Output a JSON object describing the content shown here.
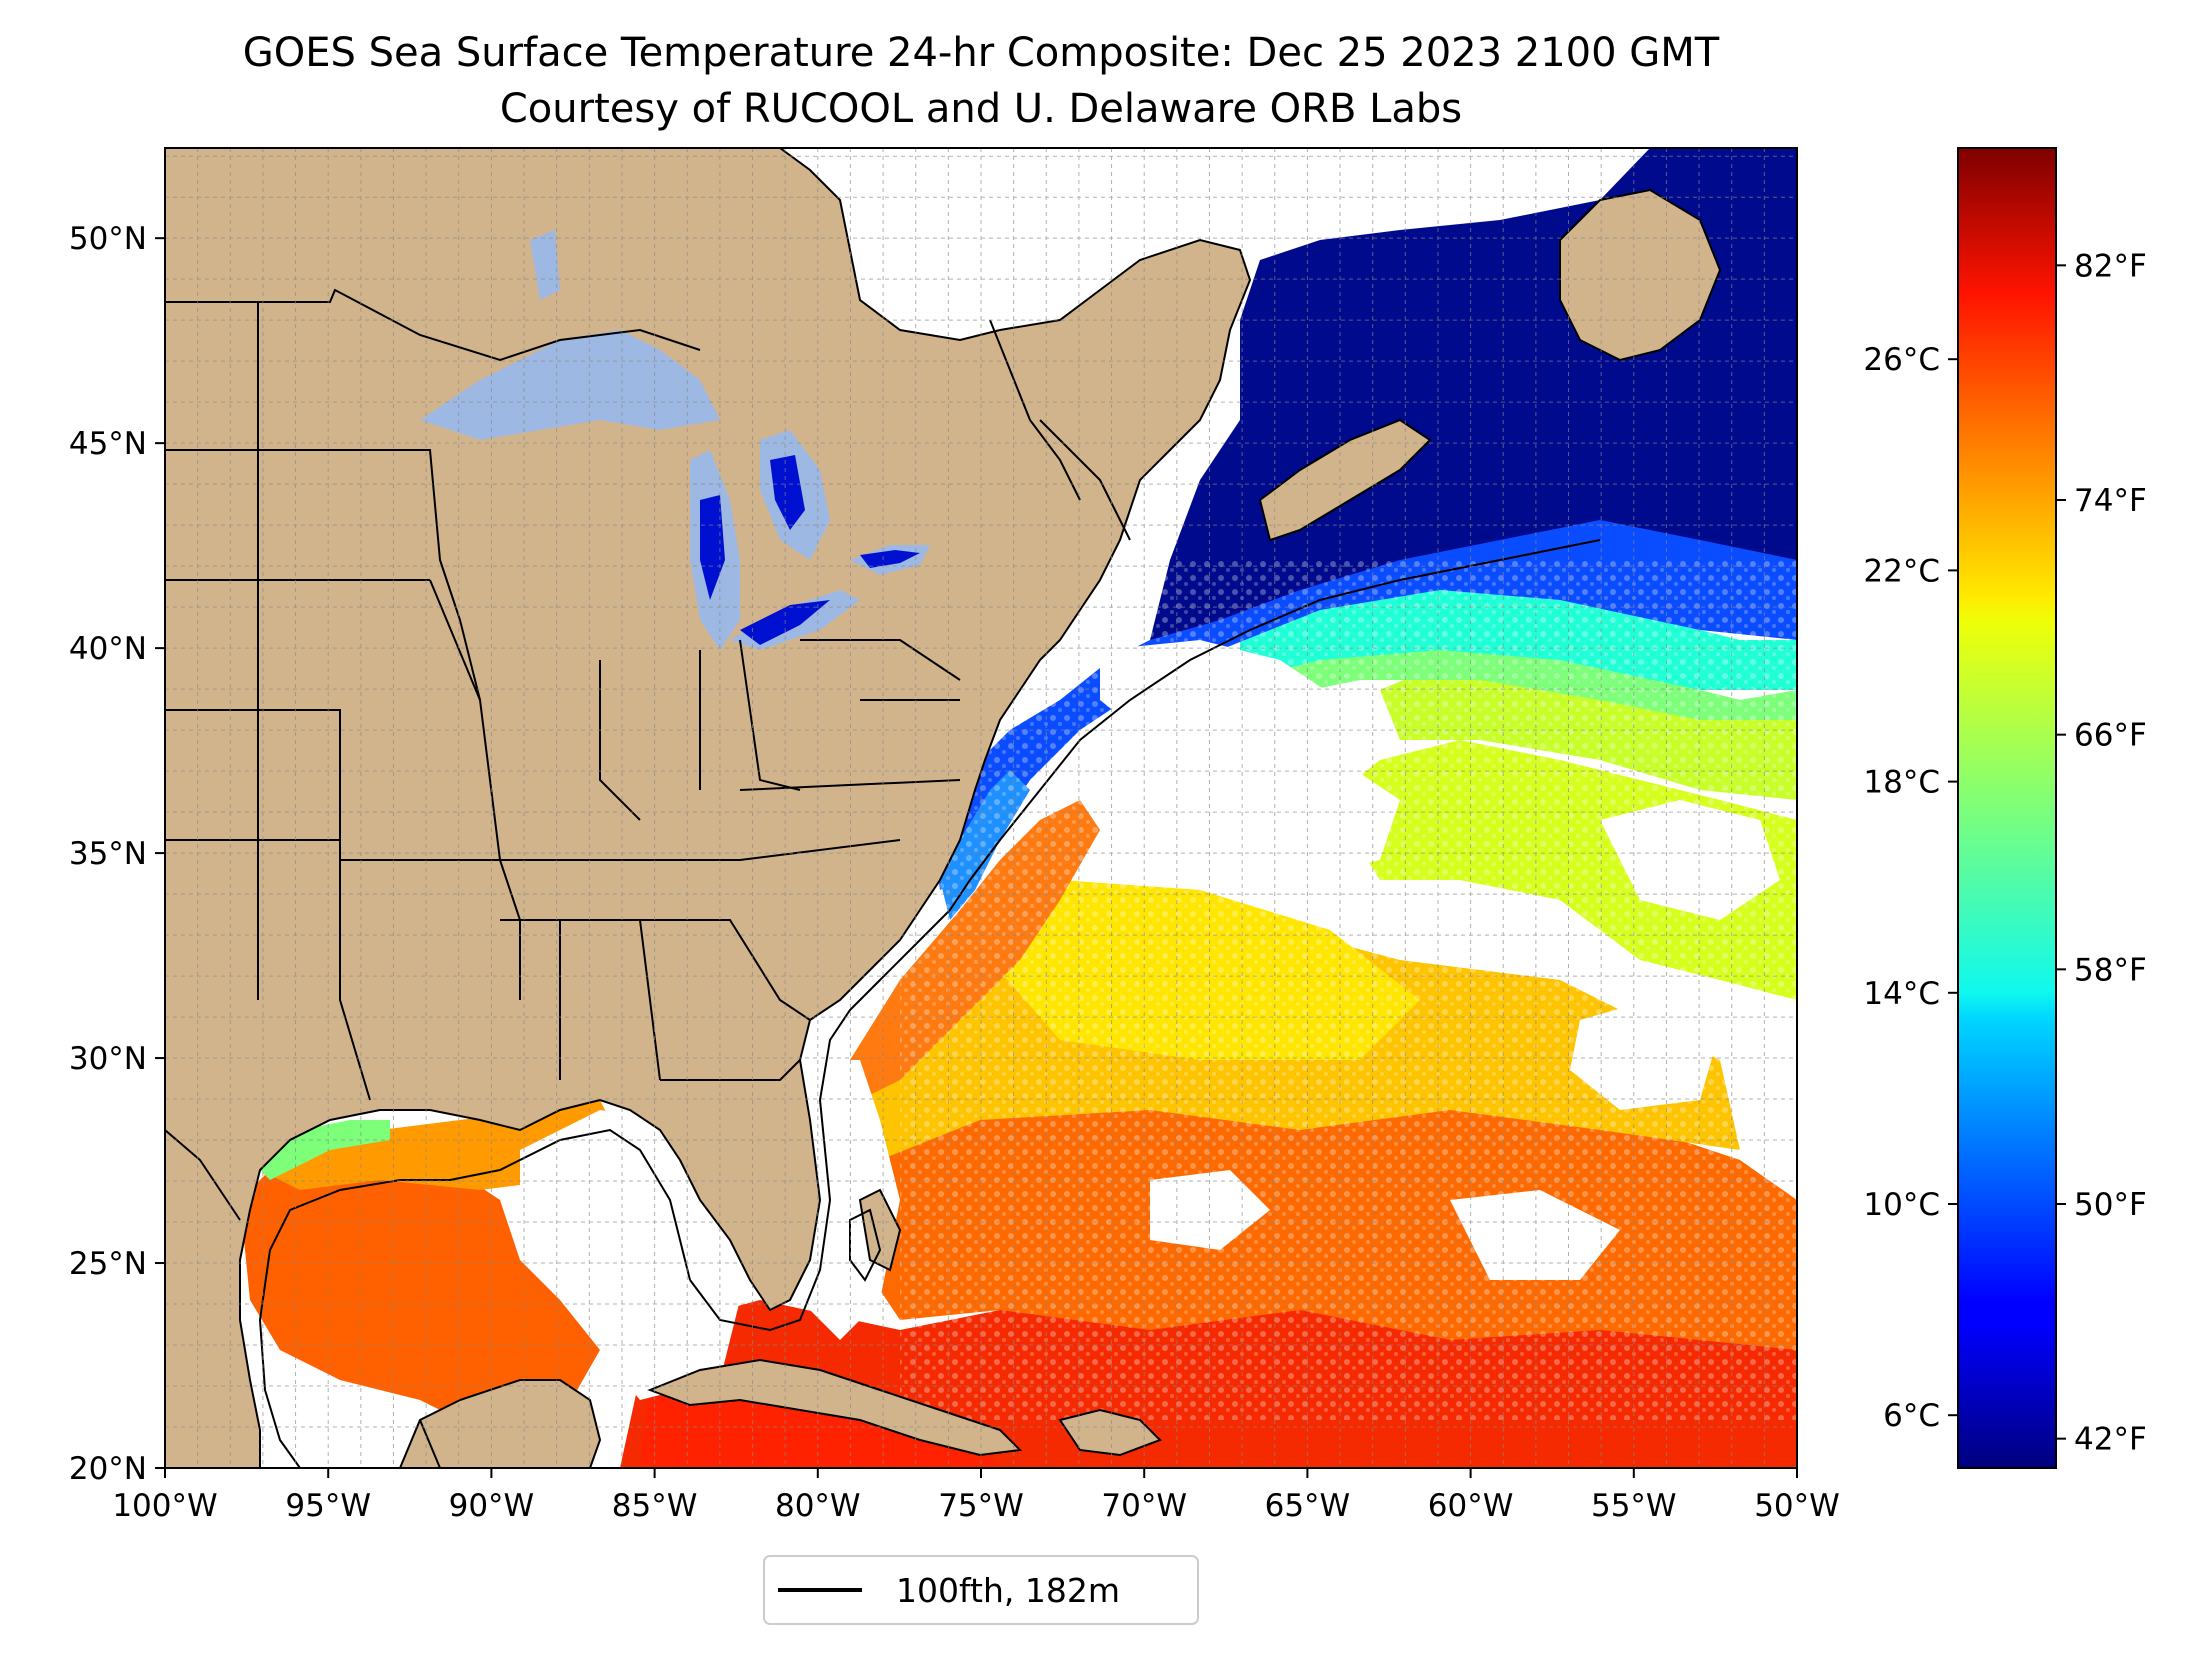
{
  "title": {
    "line1": "GOES Sea Surface Temperature 24-hr Composite: Dec 25 2023 2100 GMT",
    "line2": "Courtesy of RUCOOL and U. Delaware ORB Labs"
  },
  "map": {
    "lon_range": [
      -100,
      -50
    ],
    "lat_range": [
      20,
      52.2
    ],
    "grid": true,
    "land_color": "#d2b48c",
    "lake_color": "#9db8e2",
    "ocean_missing_color": "#ffffff",
    "lon_ticks": [
      {
        "value": -100,
        "label": "100°W"
      },
      {
        "value": -95,
        "label": "95°W"
      },
      {
        "value": -90,
        "label": "90°W"
      },
      {
        "value": -85,
        "label": "85°W"
      },
      {
        "value": -80,
        "label": "80°W"
      },
      {
        "value": -75,
        "label": "75°W"
      },
      {
        "value": -70,
        "label": "70°W"
      },
      {
        "value": -65,
        "label": "65°W"
      },
      {
        "value": -60,
        "label": "60°W"
      },
      {
        "value": -55,
        "label": "55°W"
      },
      {
        "value": -50,
        "label": "50°W"
      }
    ],
    "lat_ticks": [
      {
        "value": 20,
        "label": "20°N"
      },
      {
        "value": 25,
        "label": "25°N"
      },
      {
        "value": 30,
        "label": "30°N"
      },
      {
        "value": 35,
        "label": "35°N"
      },
      {
        "value": 40,
        "label": "40°N"
      },
      {
        "value": 45,
        "label": "45°N"
      },
      {
        "value": 50,
        "label": "50°N"
      }
    ]
  },
  "legend": {
    "entries": [
      {
        "label": "100fth, 182m",
        "color": "#000000"
      }
    ],
    "placement": "bottom-center"
  },
  "colorbar": {
    "colormap": "jet",
    "range_c": [
      5.0,
      30.0
    ],
    "celsius_ticks": [
      {
        "value": 6,
        "label": "6°C"
      },
      {
        "value": 10,
        "label": "10°C"
      },
      {
        "value": 14,
        "label": "14°C"
      },
      {
        "value": 18,
        "label": "18°C"
      },
      {
        "value": 22,
        "label": "22°C"
      },
      {
        "value": 26,
        "label": "26°C"
      }
    ],
    "fahrenheit_ticks": [
      {
        "value": 42,
        "label": "42°F"
      },
      {
        "value": 50,
        "label": "50°F"
      },
      {
        "value": 58,
        "label": "58°F"
      },
      {
        "value": 66,
        "label": "66°F"
      },
      {
        "value": 74,
        "label": "74°F"
      },
      {
        "value": 82,
        "label": "82°F"
      }
    ]
  }
}
